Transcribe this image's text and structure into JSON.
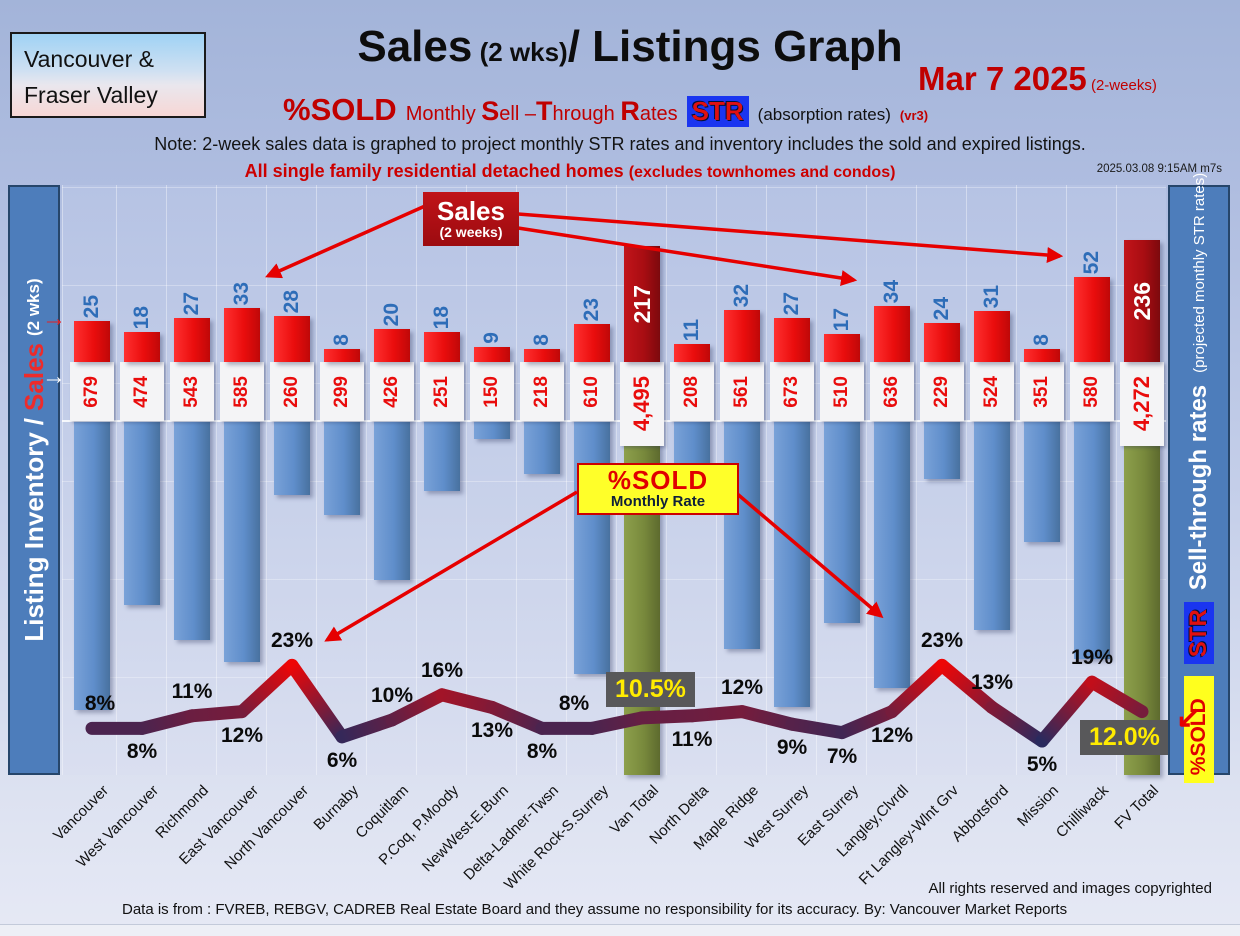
{
  "header": {
    "region_line1": "Vancouver &",
    "region_line2": "Fraser Valley",
    "title_sales": "Sales",
    "title_wks": " (2 wks)",
    "title_rest": "/ Listings Graph",
    "date": "Mar 7  2025",
    "date_suffix": " (2-weeks)",
    "percent_sold": "%SOLD",
    "rates_segments": [
      {
        "t": "Monthly ",
        "big": false
      },
      {
        "t": "S",
        "big": true
      },
      {
        "t": "ell –",
        "big": false
      },
      {
        "t": "T",
        "big": true
      },
      {
        "t": "hrough ",
        "big": false
      },
      {
        "t": "R",
        "big": true
      },
      {
        "t": "ates",
        "big": false
      }
    ],
    "str_badge": "STR",
    "absorption": "(absorption rates)",
    "vr": "(vr3)",
    "note": "Note: 2-week sales data is graphed to project monthly STR rates and inventory includes the sold and expired listings.",
    "subnote": "All single family residential detached homes",
    "subnote2": "(excludes townhomes and condos)",
    "timestamp": "2025.03.08 9:15AM m7s"
  },
  "axes": {
    "left_inventory": "Listing Inventory",
    "left_slash": "/",
    "left_sales": "Sales",
    "left_wks": "(2  wks)",
    "right_bold": "Sell-through rates",
    "right_small": "(projected monthly STR rates)",
    "right_str": "STR",
    "right_sold": "%SOLD"
  },
  "annotations": {
    "sales_box_line1": "Sales",
    "sales_box_line2": "(2 weeks)",
    "sold_box_line1": "%SOLD",
    "sold_box_line2": "Monthly Rate"
  },
  "footer": {
    "rights": "All rights reserved and  images copyrighted",
    "source": "Data is from : FVREB, REBGV, CADREB Real Estate Board and they assume no responsibility for its accuracy. By: Vancouver Market Reports"
  },
  "chart_data": {
    "type": "combo: bar (sales, 2 weeks) + inverted bar (listing inventory) + line (%SOLD monthly sell-through rate)",
    "categories": [
      "Vancouver",
      "West Vancouver",
      "Richmond",
      "East Vancouver",
      "North Vancouver",
      "Burnaby",
      "Coquitlam",
      "P.Coq, P.Moody",
      "NewWest-E.Burn",
      "Delta-Ladner-Twsn",
      "White Rock-S.Surrey",
      "Van Total",
      "North Delta",
      "Maple Ridge",
      "West Surrey",
      "East Surrey",
      "Langley,Clvrdl",
      "Ft Langley-Wlnt Grv",
      "Abbotsford",
      "Mission",
      "Chilliwack",
      "FV Total"
    ],
    "series": [
      {
        "name": "Sales (2 weeks)",
        "values": [
          25,
          18,
          27,
          33,
          28,
          8,
          20,
          18,
          9,
          8,
          23,
          217,
          11,
          32,
          27,
          17,
          34,
          24,
          31,
          8,
          52,
          236
        ],
        "labels": [
          "25",
          "18",
          "27",
          "33",
          "28",
          "8",
          "20",
          "18",
          "9",
          "8",
          "23",
          "217",
          "11",
          "32",
          "27",
          "17",
          "34",
          "24",
          "31",
          "8",
          "52",
          "236"
        ]
      },
      {
        "name": "Listing inventory (includes sold and expired)",
        "values": [
          679,
          474,
          543,
          585,
          260,
          299,
          426,
          251,
          150,
          218,
          610,
          4495,
          208,
          561,
          673,
          510,
          636,
          229,
          524,
          351,
          580,
          4272
        ],
        "labels": [
          "679",
          "474",
          "543",
          "585",
          "260",
          "299",
          "426",
          "251",
          "150",
          "218",
          "610",
          "4,495",
          "208",
          "561",
          "673",
          "510",
          "636",
          "229",
          "524",
          "351",
          "580",
          "4,272"
        ]
      },
      {
        "name": "%SOLD monthly sell-through rate",
        "values": [
          8,
          8,
          11,
          12,
          23,
          6,
          10,
          16,
          13,
          8,
          8,
          10.5,
          11,
          12,
          9,
          7,
          12,
          23,
          13,
          5,
          19,
          12
        ],
        "labels": [
          "8%",
          "8%",
          "11%",
          "12%",
          "23%",
          "6%",
          "10%",
          "16%",
          "13%",
          "8%",
          "8%",
          "10.5%",
          "11%",
          "12%",
          "9%",
          "7%",
          "12%",
          "23%",
          "13%",
          "5%",
          "19%",
          "12.0%"
        ],
        "label_side": [
          "above",
          "below",
          "above",
          "below",
          "above",
          "below",
          "above",
          "above",
          "below",
          "below",
          "above",
          "above",
          "below",
          "above",
          "below",
          "below",
          "below",
          "above",
          "above",
          "below",
          "above",
          "below"
        ]
      }
    ],
    "total_indices": [
      11,
      21
    ],
    "legend_position": "none",
    "grid": true,
    "colors": {
      "sales_bar": "#ea0d0d",
      "total_sales_bar": "#a80d12",
      "inventory_bar": "#5f8ecb",
      "total_inventory_bar": "#78893c",
      "line_low_value": "#2a2a5e",
      "line_high_value": "#ee0606",
      "sales_number_text": "#2e6db8",
      "inventory_number_text": "#e90c0c",
      "pct_box_bg": "#58585a",
      "pct_box_text": "#ffeb00"
    }
  }
}
